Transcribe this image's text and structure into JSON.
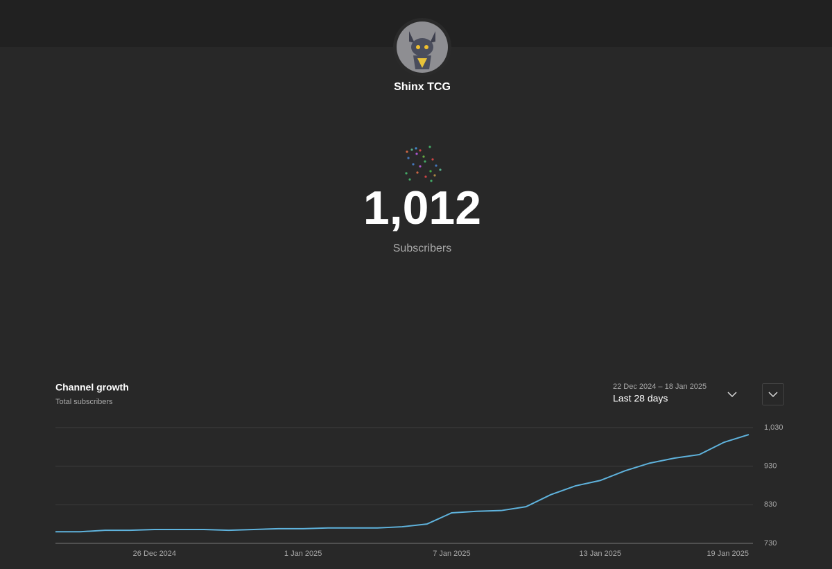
{
  "channel": {
    "name": "Shinx TCG"
  },
  "counter": {
    "value": "1,012",
    "label": "Subscribers"
  },
  "date_range": {
    "range": "22 Dec 2024 – 18 Jan 2025",
    "period": "Last 28 days"
  },
  "chart_data": {
    "type": "line",
    "title": "Channel growth",
    "subtitle": "Total subscribers",
    "categories": [
      null,
      null,
      null,
      null,
      "26 Dec 2024",
      null,
      null,
      null,
      null,
      null,
      "1 Jan 2025",
      null,
      null,
      null,
      null,
      null,
      "7 Jan 2025",
      null,
      null,
      null,
      null,
      null,
      "13 Jan 2025",
      null,
      null,
      null,
      null,
      null,
      "19 Jan 2025"
    ],
    "series": [
      {
        "name": "Total subscribers",
        "color": "#5fb3dd",
        "values": [
          760,
          760,
          764,
          764,
          766,
          766,
          766,
          764,
          766,
          768,
          768,
          770,
          770,
          770,
          773,
          780,
          809,
          813,
          815,
          825,
          856,
          879,
          893,
          918,
          938,
          951,
          960,
          992,
          1012
        ]
      }
    ],
    "ylim": [
      730,
      1030
    ],
    "yticks": [
      730,
      830,
      930,
      {
        "value": 1030,
        "label": "1,030"
      }
    ],
    "grid": true
  }
}
